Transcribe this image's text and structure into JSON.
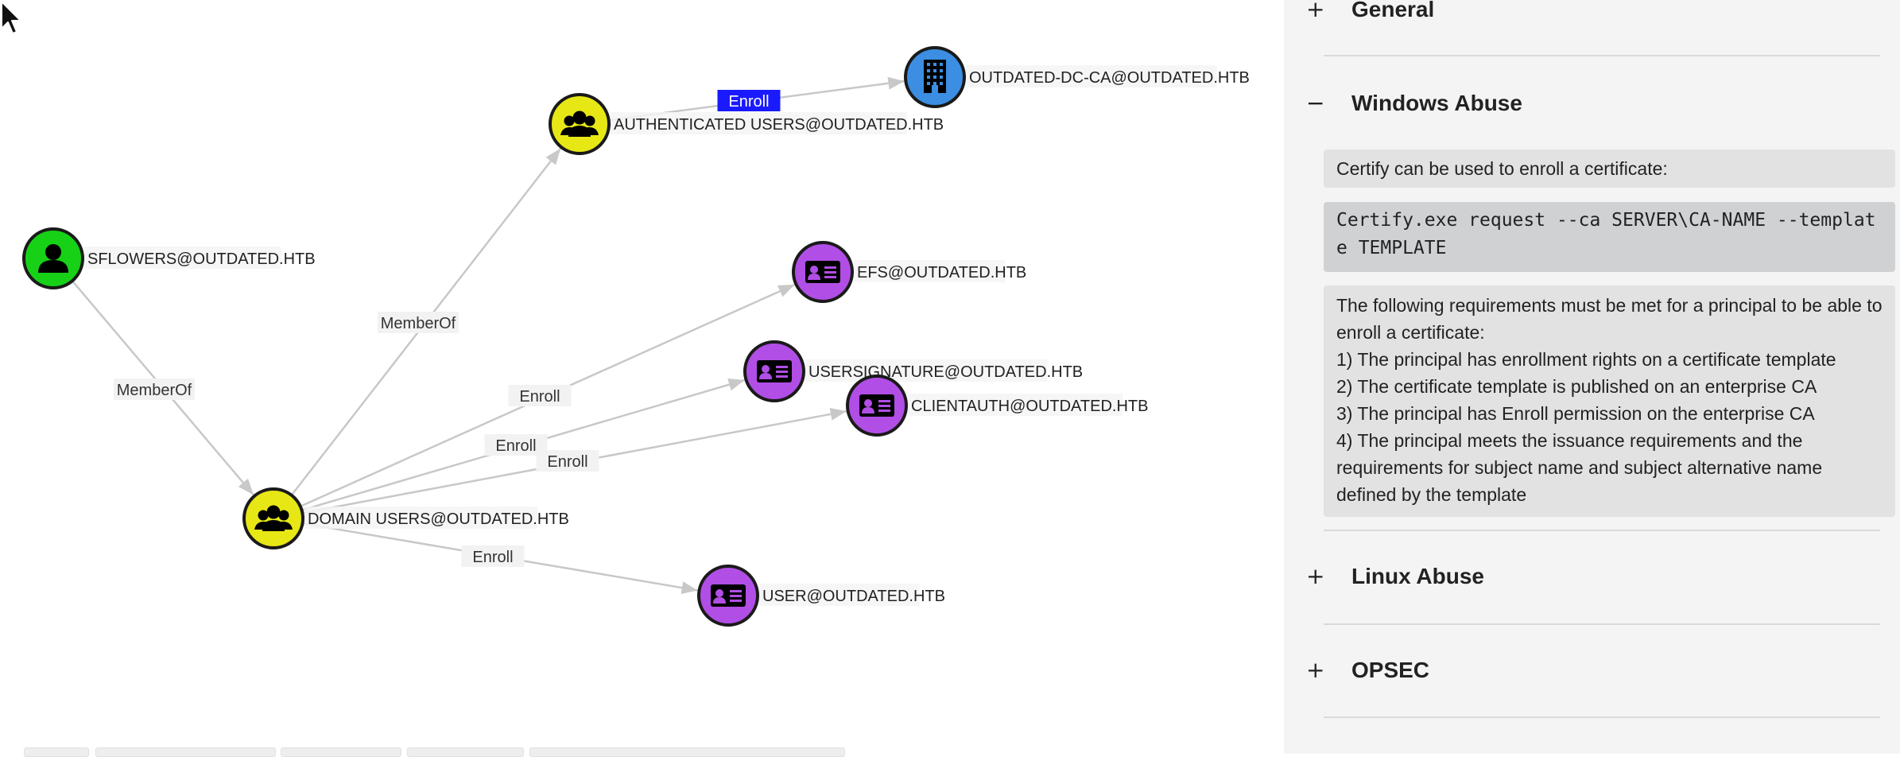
{
  "graph": {
    "nodes": [
      {
        "id": "sflowers",
        "label": "SFLOWERS@OUTDATED.HTB",
        "kind": "user",
        "color": "#17d117"
      },
      {
        "id": "domain_users",
        "label": "DOMAIN USERS@OUTDATED.HTB",
        "kind": "group",
        "color": "#e7e716"
      },
      {
        "id": "auth_users",
        "label": "AUTHENTICATED USERS@OUTDATED.HTB",
        "kind": "group",
        "color": "#e7e716"
      },
      {
        "id": "dc_ca",
        "label": "OUTDATED-DC-CA@OUTDATED.HTB",
        "kind": "ca",
        "color": "#3b8ee2"
      },
      {
        "id": "efs",
        "label": "EFS@OUTDATED.HTB",
        "kind": "template",
        "color": "#b14ee6"
      },
      {
        "id": "usersig",
        "label": "USERSIGNATURE@OUTDATED.HTB",
        "kind": "template",
        "color": "#b14ee6"
      },
      {
        "id": "clientauth",
        "label": "CLIENTAUTH@OUTDATED.HTB",
        "kind": "template",
        "color": "#b14ee6"
      },
      {
        "id": "user",
        "label": "USER@OUTDATED.HTB",
        "kind": "template",
        "color": "#b14ee6"
      }
    ],
    "edges": [
      {
        "from": "sflowers",
        "to": "domain_users",
        "label": "MemberOf",
        "highlighted": false
      },
      {
        "from": "domain_users",
        "to": "auth_users",
        "label": "MemberOf",
        "highlighted": false
      },
      {
        "from": "auth_users",
        "to": "dc_ca",
        "label": "Enroll",
        "highlighted": true
      },
      {
        "from": "domain_users",
        "to": "efs",
        "label": "Enroll",
        "highlighted": false
      },
      {
        "from": "domain_users",
        "to": "usersig",
        "label": "Enroll",
        "highlighted": false
      },
      {
        "from": "domain_users",
        "to": "clientauth",
        "label": "Enroll",
        "highlighted": false
      },
      {
        "from": "domain_users",
        "to": "user",
        "label": "Enroll",
        "highlighted": false
      }
    ],
    "highlight_color": "#1a1aff"
  },
  "panel": {
    "general": {
      "sign": "+",
      "title": "General"
    },
    "windows_abuse": {
      "sign": "−",
      "title": "Windows Abuse",
      "intro": "Certify can be used to enroll a certificate:",
      "code": "Certify.exe request --ca SERVER\\CA-NAME --template TEMPLATE",
      "req_lines": [
        "The following requirements must be met for a principal to be able to enroll a certificate:",
        "1) The principal has enrollment rights on a certificate template",
        "2) The certificate template is published on an enterprise CA",
        "3) The principal has Enroll permission on the enterprise CA",
        "4) The principal meets the issuance requirements and the requirements for subject name and subject alternative name defined by the template"
      ]
    },
    "linux_abuse": {
      "sign": "+",
      "title": "Linux Abuse"
    },
    "opsec": {
      "sign": "+",
      "title": "OPSEC"
    }
  }
}
